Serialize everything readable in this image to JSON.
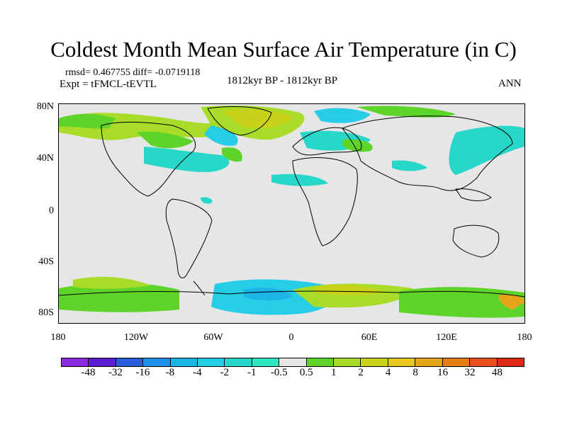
{
  "title": "Coldest Month Mean Surface Air Temperature (in C)",
  "stats_line": "rmsd= 0.467755 diff= -0.0719118",
  "expt_line": "Expt = tFMCL-tEVTL",
  "period_line": "1812kyr BP - 1812kyr BP",
  "season": "ANN",
  "lat_labels": [
    "80N",
    "40N",
    "0",
    "40S",
    "80S"
  ],
  "lon_labels": [
    "180",
    "120W",
    "60W",
    "0",
    "60E",
    "120E",
    "180"
  ],
  "colorbar": {
    "colors": [
      "#8a2be2",
      "#5a1fd1",
      "#2a5bd7",
      "#1e90e6",
      "#1fb4e6",
      "#25cde6",
      "#27d8c8",
      "#2ee6c0",
      "#e6e6e6",
      "#5ed42a",
      "#a8dc28",
      "#c8d219",
      "#e6c81e",
      "#e6a519",
      "#e67d14",
      "#e6501e",
      "#dc2a14"
    ],
    "labels": [
      "-48",
      "-32",
      "-16",
      "-8",
      "-4",
      "-2",
      "-1",
      "-0.5",
      "0.5",
      "1",
      "2",
      "4",
      "8",
      "16",
      "32",
      "48"
    ]
  }
}
